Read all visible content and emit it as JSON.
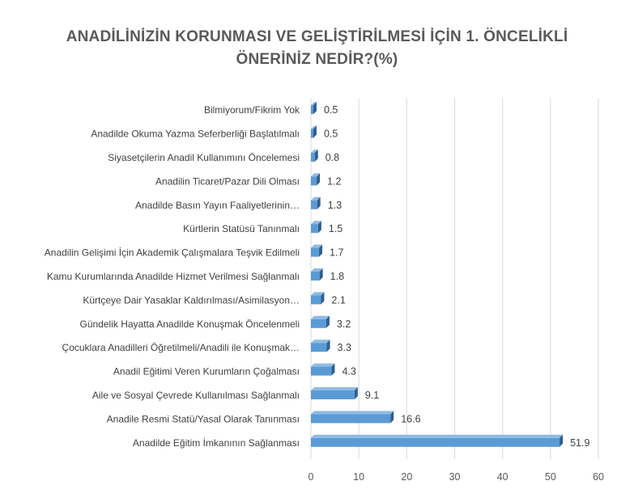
{
  "chart_data": {
    "type": "bar",
    "orientation": "horizontal",
    "title_line1": "ANADİLİNİZİN KORUNMASI VE GELİŞTİRİLMESİ İÇİN 1. ÖNCELİKLİ",
    "title_line2": "ÖNERİNİZ NEDİR?(%)",
    "categories": [
      "Bilmiyorum/Fikrim Yok",
      "Anadilde Okuma Yazma Seferberliği Başlatılmalı",
      "Siyasetçilerin Anadil Kullanımını Öncelemesi",
      "Anadilin Ticaret/Pazar Dili Olması",
      "Anadilde Basın Yayın Faaliyetlerinin…",
      "Kürtlerin Statüsü Tanınmalı",
      "Anadilin Gelişimi İçin Akademik Çalışmalara Teşvik Edilmeli",
      "Kamu Kurumlarında Anadilde Hizmet Verilmesi Sağlanmalı",
      "Kürtçeye Dair Yasaklar Kaldırılması/Asimilasyon…",
      "Gündelik Hayatta Anadilde Konuşmak Öncelenmeli",
      "Çocuklara Anadilleri Öğretilmeli/Anadili ile Konuşmak…",
      "Anadil Eğitimi Veren Kurumların Çoğalması",
      "Aile ve Sosyal Çevrede Kullanılması Sağlanmalı",
      "Anadile Resmi Statü/Yasal Olarak Tanınması",
      "Anadilde Eğitim İmkanının Sağlanması"
    ],
    "values": [
      0.5,
      0.5,
      0.8,
      1.2,
      1.3,
      1.5,
      1.7,
      1.8,
      2.1,
      3.2,
      3.3,
      4.3,
      9.1,
      16.6,
      51.9
    ],
    "value_labels": [
      "0.5",
      "0.5",
      "0.8",
      "1.2",
      "1.3",
      "1.5",
      "1.7",
      "1.8",
      "2.1",
      "3.2",
      "3.3",
      "4.3",
      "9.1",
      "16.6",
      "51.9"
    ],
    "xlim": [
      0,
      60
    ],
    "xticks": [
      "0",
      "10",
      "20",
      "30",
      "40",
      "50",
      "60"
    ],
    "grid": true,
    "bar_color": "#5b9bd5",
    "bar_side_color": "#2e5f8e",
    "grid_color": "#d9d9d9"
  }
}
